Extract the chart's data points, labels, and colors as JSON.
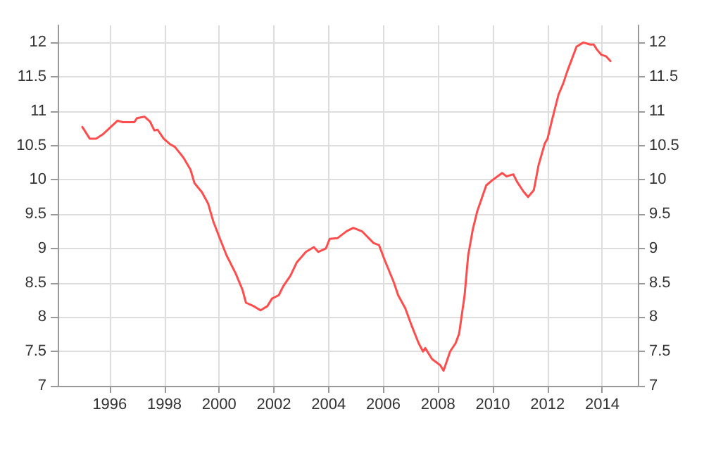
{
  "chart_data": {
    "type": "line",
    "xlim": [
      1994.1,
      2015.3
    ],
    "xticks": [
      1996,
      1998,
      2000,
      2002,
      2004,
      2006,
      2008,
      2010,
      2012,
      2014
    ],
    "ylim": [
      7,
      12.25
    ],
    "yticks": [
      7,
      7.5,
      8,
      8.5,
      9,
      9.5,
      10,
      10.5,
      11,
      11.5,
      12
    ],
    "y2lim": [
      7,
      12.25
    ],
    "y2ticks": [
      7,
      7.5,
      8,
      8.5,
      9,
      9.5,
      10,
      10.5,
      11,
      11.5,
      12
    ],
    "grid": true,
    "marker": "none",
    "line_style": "solid",
    "series": [
      {
        "color": "#ff4d4d",
        "x": [
          1995.0,
          1995.27,
          1995.5,
          1995.74,
          1996.28,
          1996.48,
          1996.9,
          1997.0,
          1997.27,
          1997.47,
          1997.63,
          1997.75,
          1997.97,
          1998.2,
          1998.38,
          1998.7,
          1998.95,
          1999.1,
          1999.37,
          1999.6,
          1999.78,
          2000.02,
          2000.27,
          2000.6,
          2000.85,
          2000.98,
          2001.26,
          2001.51,
          2001.76,
          2001.93,
          2002.18,
          2002.34,
          2002.6,
          2002.84,
          2003.17,
          2003.46,
          2003.62,
          2003.9,
          2004.04,
          2004.32,
          2004.65,
          2004.9,
          2005.22,
          2005.64,
          2005.84,
          2006.05,
          2006.38,
          2006.54,
          2006.8,
          2007.04,
          2007.29,
          2007.45,
          2007.53,
          2007.78,
          2008.08,
          2008.2,
          2008.44,
          2008.64,
          2008.77,
          2008.97,
          2009.1,
          2009.27,
          2009.43,
          2009.76,
          2010.0,
          2010.34,
          2010.5,
          2010.75,
          2010.89,
          2011.12,
          2011.29,
          2011.5,
          2011.67,
          2011.9,
          2012.0,
          2012.17,
          2012.4,
          2012.57,
          2012.73,
          2013.06,
          2013.31,
          2013.56,
          2013.69,
          2013.8,
          2013.97,
          2014.14,
          2014.3
        ],
        "values": [
          10.77,
          10.6,
          10.6,
          10.66,
          10.86,
          10.84,
          10.84,
          10.9,
          10.92,
          10.85,
          10.72,
          10.73,
          10.6,
          10.52,
          10.48,
          10.32,
          10.15,
          9.95,
          9.82,
          9.65,
          9.4,
          9.15,
          8.9,
          8.64,
          8.4,
          8.21,
          8.16,
          8.1,
          8.16,
          8.27,
          8.32,
          8.45,
          8.6,
          8.8,
          8.95,
          9.02,
          8.95,
          9.0,
          9.14,
          9.15,
          9.25,
          9.3,
          9.25,
          9.08,
          9.05,
          8.83,
          8.51,
          8.32,
          8.13,
          7.87,
          7.62,
          7.5,
          7.55,
          7.39,
          7.3,
          7.22,
          7.5,
          7.62,
          7.76,
          8.32,
          8.9,
          9.28,
          9.54,
          9.92,
          10.0,
          10.1,
          10.05,
          10.08,
          9.97,
          9.83,
          9.75,
          9.85,
          10.21,
          10.53,
          10.6,
          10.88,
          11.24,
          11.4,
          11.59,
          11.94,
          12.0,
          11.97,
          11.97,
          11.9,
          11.82,
          11.8,
          11.73
        ]
      }
    ]
  }
}
